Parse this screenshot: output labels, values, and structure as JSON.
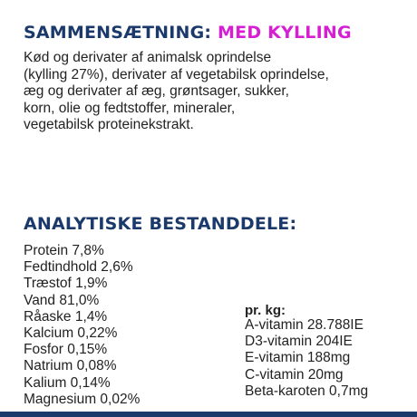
{
  "composition": {
    "heading_main": "SAMMENSÆTNING:",
    "heading_accent": "MED KYLLING",
    "lines": [
      "Kød og derivater af animalsk oprindelse",
      "(kylling 27%), derivater af vegetabilsk oprindelse,",
      "æg og derivater af æg, grøntsager, sukker,",
      "korn, olie og fedtstoffer, mineraler,",
      "vegetabilsk proteinekstrakt."
    ]
  },
  "analytical": {
    "heading": "ANALYTISKE BESTANDDELE:",
    "nutrients": [
      "Protein 7,8%",
      "Fedtindhold 2,6%",
      "Træstof 1,9%",
      "Vand 81,0%",
      "Råaske 1,4%",
      "Kalcium 0,22%",
      "Fosfor 0,15%",
      "Natrium 0,08%",
      "Kalium 0,14%",
      "Magnesium 0,02%"
    ],
    "per_kg_label": "pr. kg:",
    "vitamins": [
      "A-vitamin 28.788IE",
      "D3-vitamin 204IE",
      "E-vitamin 188mg",
      "C-vitamin 20mg",
      "Beta-karoten 0,7mg"
    ]
  },
  "colors": {
    "navy": "#1b3a6b",
    "magenta": "#d61fd3",
    "text": "#222222"
  }
}
